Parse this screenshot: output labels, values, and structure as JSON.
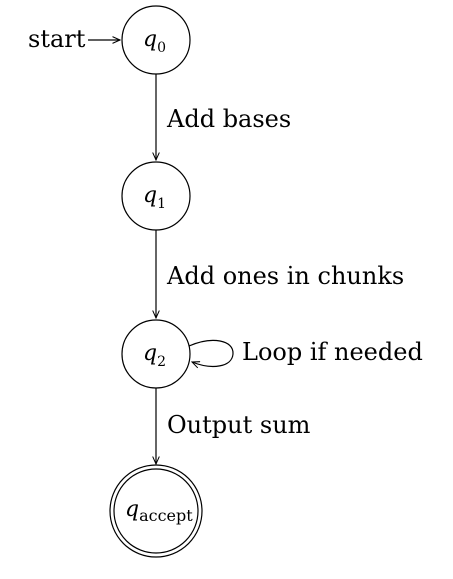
{
  "start_label": "start",
  "states": {
    "q0": {
      "name": "q",
      "sub": "0"
    },
    "q1": {
      "name": "q",
      "sub": "1"
    },
    "q2": {
      "name": "q",
      "sub": "2"
    },
    "qaccept": {
      "name": "q",
      "sub": "accept"
    }
  },
  "transitions": {
    "q0_q1": "Add bases",
    "q1_q2": "Add ones in chunks",
    "q2_loop": "Loop if needed",
    "q2_qaccept": "Output sum"
  }
}
